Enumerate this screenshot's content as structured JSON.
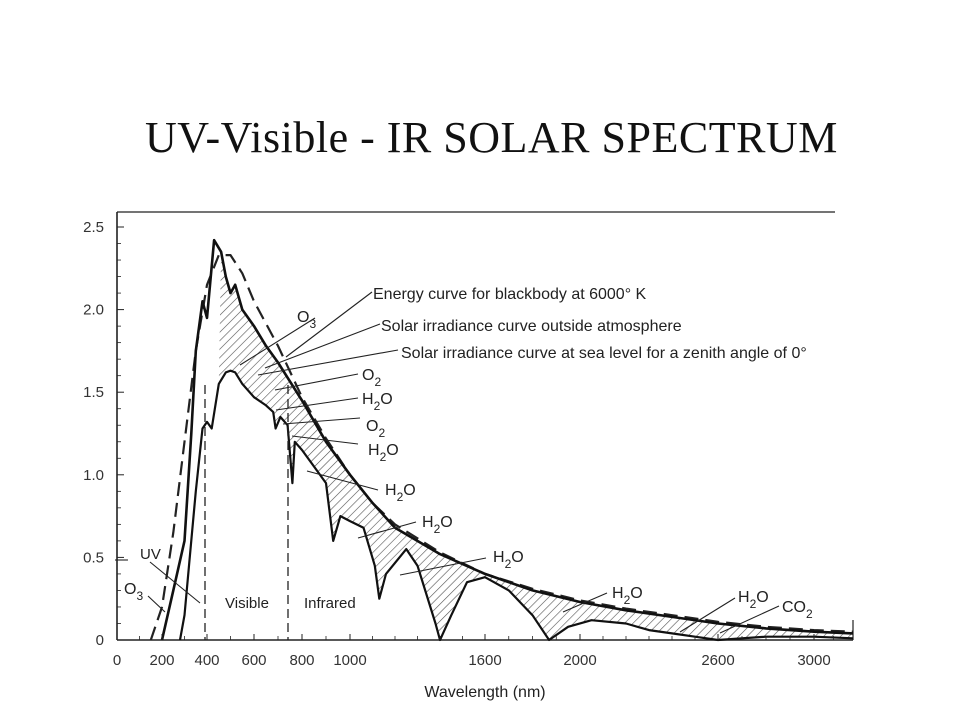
{
  "title": "UV-Visible - IR SOLAR SPECTRUM",
  "chart_data": {
    "type": "line",
    "title": "UV-Visible - IR SOLAR SPECTRUM",
    "xlabel": "Wavelength (nm)",
    "ylabel": "",
    "xlim": [
      0,
      3200
    ],
    "ylim": [
      0,
      2.5
    ],
    "x_ticks": [
      "0",
      "200",
      "400",
      "600",
      "800",
      "1000",
      "1600",
      "2000",
      "2600",
      "3000"
    ],
    "y_ticks": [
      "0",
      "0.5",
      "1.0",
      "1.5",
      "2.0",
      "2.5"
    ],
    "grid": false,
    "series": [
      {
        "name": "Energy curve for blackbody at 6000° K",
        "style": "dashed",
        "points": [
          [
            150,
            0.0
          ],
          [
            200,
            0.2
          ],
          [
            250,
            0.65
          ],
          [
            300,
            1.2
          ],
          [
            350,
            1.75
          ],
          [
            400,
            2.15
          ],
          [
            450,
            2.33
          ],
          [
            500,
            2.33
          ],
          [
            550,
            2.22
          ],
          [
            600,
            2.05
          ],
          [
            700,
            1.78
          ],
          [
            800,
            1.47
          ],
          [
            900,
            1.22
          ],
          [
            1000,
            1.0
          ],
          [
            1100,
            0.83
          ],
          [
            1200,
            0.7
          ],
          [
            1400,
            0.53
          ],
          [
            1600,
            0.4
          ],
          [
            1800,
            0.31
          ],
          [
            2000,
            0.24
          ],
          [
            2200,
            0.19
          ],
          [
            2400,
            0.15
          ],
          [
            2600,
            0.11
          ],
          [
            2800,
            0.08
          ],
          [
            3000,
            0.06
          ],
          [
            3200,
            0.05
          ]
        ]
      },
      {
        "name": "Solar irradiance curve outside atmosphere",
        "style": "solid-heavy",
        "points": [
          [
            200,
            0.0
          ],
          [
            250,
            0.3
          ],
          [
            300,
            0.6
          ],
          [
            330,
            1.25
          ],
          [
            350,
            1.75
          ],
          [
            380,
            2.05
          ],
          [
            400,
            1.95
          ],
          [
            430,
            2.42
          ],
          [
            460,
            2.35
          ],
          [
            480,
            2.2
          ],
          [
            500,
            2.1
          ],
          [
            520,
            2.15
          ],
          [
            550,
            2.0
          ],
          [
            600,
            1.9
          ],
          [
            650,
            1.78
          ],
          [
            700,
            1.68
          ],
          [
            800,
            1.45
          ],
          [
            900,
            1.2
          ],
          [
            1000,
            1.0
          ],
          [
            1100,
            0.83
          ],
          [
            1200,
            0.68
          ],
          [
            1400,
            0.52
          ],
          [
            1600,
            0.4
          ],
          [
            1800,
            0.3
          ],
          [
            2000,
            0.23
          ],
          [
            2200,
            0.18
          ],
          [
            2400,
            0.14
          ],
          [
            2600,
            0.1
          ],
          [
            2800,
            0.07
          ],
          [
            3000,
            0.05
          ],
          [
            3200,
            0.04
          ]
        ]
      },
      {
        "name": "Solar irradiance curve at sea level for a zenith angle of 0°",
        "style": "solid",
        "points": [
          [
            280,
            0.0
          ],
          [
            300,
            0.15
          ],
          [
            320,
            0.45
          ],
          [
            350,
            0.9
          ],
          [
            380,
            1.28
          ],
          [
            400,
            1.32
          ],
          [
            420,
            1.28
          ],
          [
            450,
            1.55
          ],
          [
            480,
            1.62
          ],
          [
            500,
            1.63
          ],
          [
            520,
            1.62
          ],
          [
            550,
            1.55
          ],
          [
            600,
            1.47
          ],
          [
            650,
            1.42
          ],
          [
            680,
            1.38
          ],
          [
            690,
            1.28
          ],
          [
            710,
            1.35
          ],
          [
            740,
            1.3
          ],
          [
            760,
            0.95
          ],
          [
            770,
            1.2
          ],
          [
            800,
            1.15
          ],
          [
            850,
            1.05
          ],
          [
            900,
            0.95
          ],
          [
            930,
            0.6
          ],
          [
            960,
            0.75
          ],
          [
            1000,
            0.72
          ],
          [
            1060,
            0.68
          ],
          [
            1110,
            0.45
          ],
          [
            1130,
            0.25
          ],
          [
            1160,
            0.4
          ],
          [
            1250,
            0.55
          ],
          [
            1300,
            0.45
          ],
          [
            1380,
            0.1
          ],
          [
            1400,
            0.0
          ],
          [
            1450,
            0.15
          ],
          [
            1520,
            0.35
          ],
          [
            1600,
            0.38
          ],
          [
            1700,
            0.3
          ],
          [
            1800,
            0.15
          ],
          [
            1870,
            0.0
          ],
          [
            1950,
            0.08
          ],
          [
            2050,
            0.12
          ],
          [
            2200,
            0.1
          ],
          [
            2300,
            0.06
          ],
          [
            2400,
            0.04
          ],
          [
            2500,
            0.02
          ],
          [
            2600,
            0.0
          ],
          [
            2800,
            0.02
          ],
          [
            3000,
            0.02
          ],
          [
            3200,
            0.01
          ]
        ]
      }
    ],
    "annotations": {
      "legend_labels": [
        "Energy curve for blackbody at 6000° K",
        "Solar irradiance curve outside atmosphere",
        "Solar irradiance curve at sea level for a zenith angle of 0°"
      ],
      "absorption": [
        {
          "base": "O",
          "sub": "3"
        },
        {
          "base": "O",
          "sub": "2"
        },
        {
          "base": "H",
          "sub": "2",
          "tail": "O"
        },
        {
          "base": "O",
          "sub": "2"
        },
        {
          "base": "H",
          "sub": "2",
          "tail": "O"
        },
        {
          "base": "H",
          "sub": "2",
          "tail": "O"
        },
        {
          "base": "H",
          "sub": "2",
          "tail": "O"
        },
        {
          "base": "H",
          "sub": "2",
          "tail": "O"
        },
        {
          "base": "H",
          "sub": "2",
          "tail": "O"
        },
        {
          "base": "H",
          "sub": "2",
          "tail": "O"
        },
        {
          "base": "CO",
          "sub": "2"
        }
      ],
      "uv_label": "UV",
      "o3_bottom": {
        "base": "O",
        "sub": "3"
      },
      "visible_label": "Visible",
      "infrared_label": "Infrared",
      "region_lines_nm": [
        400,
        750
      ]
    }
  }
}
